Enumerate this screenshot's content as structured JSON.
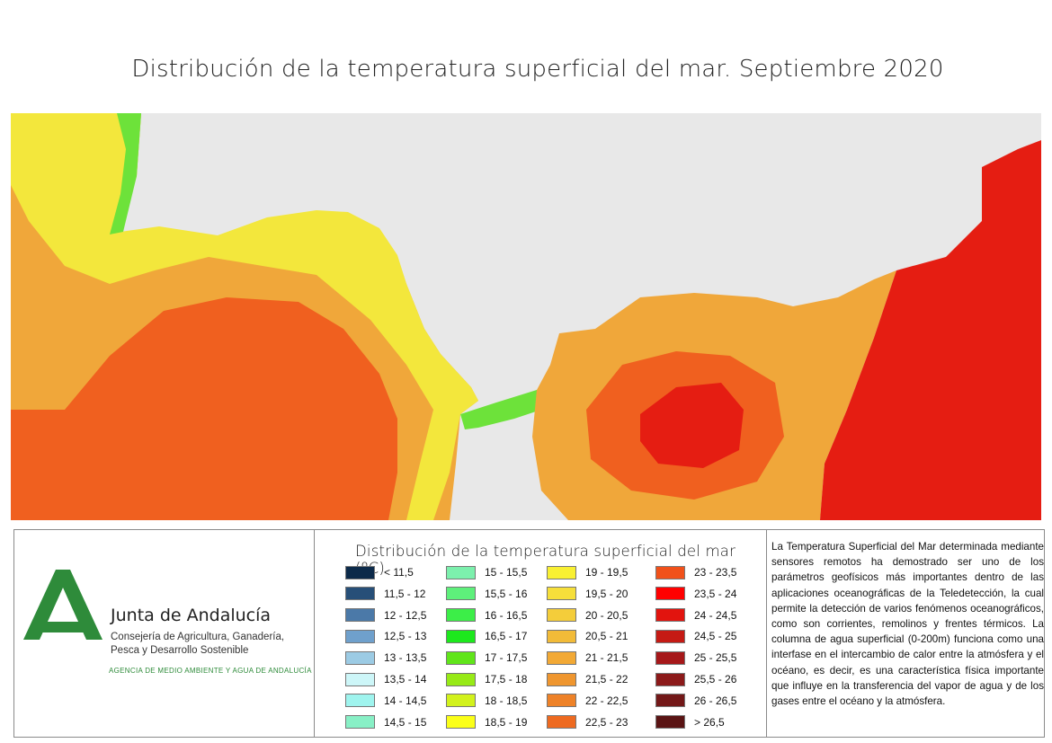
{
  "title": "Distribución de la temperatura superficial del mar. Septiembre 2020",
  "map": {
    "region_colors": {
      "land": "#e8e8e8",
      "cold": "#6de23a",
      "cool": "#f3e73c",
      "warm": "#f0a73a",
      "hot": "#f0601f",
      "very_hot": "#e51d12"
    }
  },
  "organization": {
    "name": "Junta de Andalucía",
    "department_line1": "Consejería de Agricultura, Ganadería,",
    "department_line2": "Pesca y Desarrollo Sostenible",
    "agency": "AGENCIA DE MEDIO AMBIENTE Y AGUA DE ANDALUCÍA",
    "logo_color": "#2e8b3a"
  },
  "legend": {
    "title": "Distribución de la temperatura superficial del mar (ºC)",
    "items": [
      {
        "label": "< 11,5",
        "color": "#0c2a4a"
      },
      {
        "label": "11,5 - 12",
        "color": "#274f78"
      },
      {
        "label": "12 - 12,5",
        "color": "#4b79a8"
      },
      {
        "label": "12,5 - 13",
        "color": "#6fa0cc"
      },
      {
        "label": "13 - 13,5",
        "color": "#9ccbe4"
      },
      {
        "label": "13,5 - 14",
        "color": "#cdf6f8"
      },
      {
        "label": "14 - 14,5",
        "color": "#9ff4ee"
      },
      {
        "label": "14,5 - 15",
        "color": "#88f0c6"
      },
      {
        "label": "15 - 15,5",
        "color": "#7cf0ad"
      },
      {
        "label": "15,5 - 16",
        "color": "#5ef07b"
      },
      {
        "label": "16 - 16,5",
        "color": "#3cee48"
      },
      {
        "label": "16,5 - 17",
        "color": "#1de81d"
      },
      {
        "label": "17 - 17,5",
        "color": "#60e51a"
      },
      {
        "label": "17,5 - 18",
        "color": "#97ea16"
      },
      {
        "label": "18 - 18,5",
        "color": "#d2f21c"
      },
      {
        "label": "18,5 - 19",
        "color": "#fbff18"
      },
      {
        "label": "19 - 19,5",
        "color": "#f9f032"
      },
      {
        "label": "19,5 - 20",
        "color": "#f6df3a"
      },
      {
        "label": "20 - 20,5",
        "color": "#f4cd3a"
      },
      {
        "label": "20,5 - 21",
        "color": "#f2bb38"
      },
      {
        "label": "21 - 21,5",
        "color": "#f2a935"
      },
      {
        "label": "21,5 - 22",
        "color": "#ef962f"
      },
      {
        "label": "22 - 22,5",
        "color": "#ee8228"
      },
      {
        "label": "22,5 - 23",
        "color": "#ee6a20"
      },
      {
        "label": "23 - 23,5",
        "color": "#f1511a"
      },
      {
        "label": "23,5 - 24",
        "color": "#ff0000"
      },
      {
        "label": "24 - 24,5",
        "color": "#e2140e"
      },
      {
        "label": "24,5 - 25",
        "color": "#c51a14"
      },
      {
        "label": "25 - 25,5",
        "color": "#a6181a"
      },
      {
        "label": "25,5 - 26",
        "color": "#8c1a1a"
      },
      {
        "label": "26 - 26,5",
        "color": "#731818"
      },
      {
        "label": "> 26,5",
        "color": "#5a1414"
      }
    ]
  },
  "description": "La Temperatura Superficial del Mar determinada mediante sensores remotos ha demostrado ser uno de los parámetros geofísicos más importantes dentro de las aplicaciones oceanográficas de la Teledetección, la cual permite la detección de varios fenómenos oceanográficos, como son corrientes, remolinos y frentes térmicos. La columna de agua superficial (0-200m) funciona como una interfase en el intercambio de calor entre la atmósfera y el océano, es decir, es una característica física importante que influye en la transferencia del vapor de agua y de los gases entre el océano y la atmósfera."
}
